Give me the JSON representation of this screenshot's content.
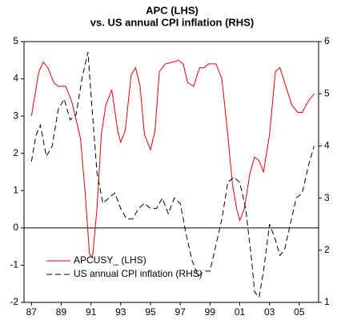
{
  "chart_data": {
    "type": "line",
    "title": "APC (LHS)",
    "subtitle": "vs. US annual CPI inflation (RHS)",
    "xlim": [
      1986.5,
      2006.3
    ],
    "xticks": [
      {
        "value": 1987,
        "label": "87"
      },
      {
        "value": 1989,
        "label": "89"
      },
      {
        "value": 1991,
        "label": "91"
      },
      {
        "value": 1993,
        "label": "93"
      },
      {
        "value": 1995,
        "label": "95"
      },
      {
        "value": 1997,
        "label": "97"
      },
      {
        "value": 1999,
        "label": "99"
      },
      {
        "value": 2001,
        "label": "01"
      },
      {
        "value": 2003,
        "label": "03"
      },
      {
        "value": 2005,
        "label": "05"
      }
    ],
    "ylim": [
      -2,
      5
    ],
    "yticks": [
      -2,
      -1,
      0,
      1,
      2,
      3,
      4,
      5
    ],
    "y2lim": [
      1,
      6
    ],
    "y2ticks": [
      1,
      2,
      3,
      4,
      5,
      6
    ],
    "zero_line": true,
    "legend": "lower left",
    "series": [
      {
        "name": "APCUSY_ (LHS)",
        "color": "#e8000b",
        "dash": false,
        "axis": "y",
        "x": [
          1987.0,
          1987.5,
          1987.8,
          1988.1,
          1988.5,
          1988.8,
          1989.3,
          1989.7,
          1990.0,
          1990.3,
          1990.6,
          1990.9,
          1991.1,
          1991.4,
          1991.7,
          1992.0,
          1992.4,
          1992.8,
          1993.0,
          1993.3,
          1993.7,
          1994.0,
          1994.3,
          1994.6,
          1995.0,
          1995.3,
          1995.6,
          1996.0,
          1996.5,
          1996.9,
          1997.2,
          1997.5,
          1997.9,
          1998.3,
          1998.6,
          1998.9,
          1999.4,
          1999.8,
          2000.2,
          2000.5,
          2000.8,
          2001.0,
          2001.3,
          2001.7,
          2002.0,
          2002.3,
          2002.6,
          2003.0,
          2003.4,
          2003.7,
          2004.1,
          2004.5,
          2004.9,
          2005.2,
          2005.6,
          2006.0
        ],
        "values": [
          3.0,
          4.2,
          4.45,
          4.3,
          3.9,
          3.8,
          3.8,
          3.4,
          2.9,
          2.4,
          1.0,
          -0.7,
          -0.8,
          0.5,
          2.5,
          3.3,
          3.7,
          2.6,
          2.3,
          2.6,
          4.1,
          4.3,
          3.8,
          2.5,
          2.1,
          2.6,
          4.2,
          4.4,
          4.45,
          4.5,
          4.4,
          3.9,
          3.8,
          4.3,
          4.3,
          4.4,
          4.4,
          4.0,
          2.5,
          1.2,
          0.5,
          0.2,
          0.5,
          1.5,
          1.9,
          1.8,
          1.5,
          2.5,
          4.2,
          4.3,
          3.8,
          3.3,
          3.1,
          3.1,
          3.4,
          3.6
        ]
      },
      {
        "name": "US annual CPI inflation (RHS)",
        "color": "#000000",
        "dash": true,
        "axis": "y2",
        "x": [
          1987.0,
          1987.3,
          1987.6,
          1988.0,
          1988.4,
          1988.8,
          1989.2,
          1989.6,
          1990.0,
          1990.4,
          1990.8,
          1991.0,
          1991.4,
          1991.8,
          1992.2,
          1992.6,
          1993.0,
          1993.4,
          1993.8,
          1994.2,
          1994.6,
          1995.0,
          1995.4,
          1995.8,
          1996.2,
          1996.6,
          1997.0,
          1997.4,
          1997.8,
          1998.2,
          1998.6,
          1999.0,
          1999.4,
          1999.8,
          2000.2,
          2000.6,
          2001.0,
          2001.4,
          2001.8,
          2002.0,
          2002.3,
          2002.6,
          2003.0,
          2003.4,
          2003.7,
          2004.0,
          2004.4,
          2004.8,
          2005.2,
          2005.6,
          2006.0
        ],
        "values": [
          3.7,
          4.2,
          4.4,
          3.8,
          4.0,
          4.7,
          4.9,
          4.5,
          4.6,
          5.3,
          5.8,
          5.0,
          3.5,
          2.9,
          3.0,
          3.1,
          2.8,
          2.6,
          2.6,
          2.8,
          2.9,
          2.8,
          2.8,
          3.0,
          2.7,
          3.0,
          2.9,
          2.3,
          1.8,
          1.5,
          1.6,
          1.6,
          2.1,
          2.6,
          3.3,
          3.4,
          3.3,
          2.8,
          1.8,
          1.2,
          1.1,
          1.6,
          2.5,
          2.2,
          1.9,
          2.0,
          2.5,
          3.0,
          3.1,
          3.6,
          4.0
        ]
      }
    ]
  }
}
